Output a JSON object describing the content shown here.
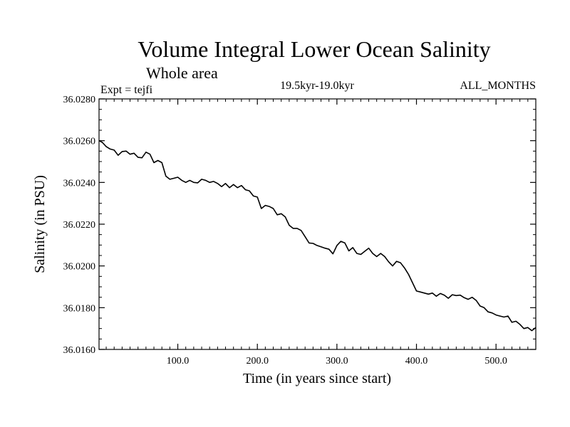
{
  "chart_data": {
    "type": "line",
    "title": "Volume Integral Lower Ocean Salinity",
    "subtitle": "Whole area",
    "experiment": "Expt = tejfi",
    "period": "19.5kyr-19.0kyr",
    "months": "ALL_MONTHS",
    "xlabel": "Time (in years since start)",
    "ylabel": "Salinity (in PSU)",
    "xlim": [
      1,
      550
    ],
    "ylim": [
      36.016,
      36.028
    ],
    "x_ticks": [
      100,
      200,
      300,
      400,
      500
    ],
    "x_tick_labels": [
      "100.0",
      "200.0",
      "300.0",
      "400.0",
      "500.0"
    ],
    "y_ticks": [
      36.016,
      36.018,
      36.02,
      36.022,
      36.024,
      36.026,
      36.028
    ],
    "y_tick_labels": [
      "36.0160",
      "36.0180",
      "36.0200",
      "36.0220",
      "36.0240",
      "36.0260",
      "36.0280"
    ],
    "grid": false,
    "series": [
      {
        "name": "salinity",
        "color": "#000000",
        "x": [
          1,
          5,
          10,
          15,
          20,
          25,
          30,
          35,
          40,
          45,
          50,
          55,
          60,
          65,
          70,
          75,
          80,
          85,
          90,
          95,
          100,
          105,
          110,
          115,
          120,
          125,
          130,
          135,
          140,
          145,
          150,
          155,
          160,
          165,
          170,
          175,
          180,
          185,
          190,
          195,
          200,
          205,
          210,
          215,
          220,
          225,
          230,
          235,
          240,
          245,
          250,
          255,
          260,
          265,
          270,
          275,
          280,
          285,
          290,
          295,
          300,
          305,
          310,
          315,
          320,
          325,
          330,
          335,
          340,
          345,
          350,
          355,
          360,
          365,
          370,
          375,
          380,
          385,
          390,
          395,
          400,
          405,
          410,
          415,
          420,
          425,
          430,
          435,
          440,
          445,
          450,
          455,
          460,
          465,
          470,
          475,
          480,
          485,
          490,
          495,
          500,
          505,
          510,
          515,
          520,
          525,
          530,
          535,
          540,
          545,
          550
        ],
        "values": [
          36.026,
          36.02592,
          36.02572,
          36.0256,
          36.02555,
          36.0253,
          36.02548,
          36.0255,
          36.02535,
          36.0254,
          36.0252,
          36.02518,
          36.02545,
          36.02535,
          36.02495,
          36.02505,
          36.02495,
          36.0243,
          36.02415,
          36.0242,
          36.02425,
          36.0241,
          36.024,
          36.0241,
          36.024,
          36.02398,
          36.02415,
          36.0241,
          36.024,
          36.02405,
          36.02395,
          36.0238,
          36.02395,
          36.02375,
          36.0239,
          36.02375,
          36.02385,
          36.02365,
          36.0236,
          36.02335,
          36.0233,
          36.02275,
          36.0229,
          36.02285,
          36.02275,
          36.02245,
          36.0225,
          36.02235,
          36.02195,
          36.0218,
          36.0218,
          36.0217,
          36.0214,
          36.0211,
          36.02108,
          36.02098,
          36.02092,
          36.02085,
          36.0208,
          36.02058,
          36.02098,
          36.02118,
          36.0211,
          36.02072,
          36.02088,
          36.0206,
          36.02055,
          36.0207,
          36.02085,
          36.0206,
          36.02045,
          36.0206,
          36.02045,
          36.0202,
          36.02,
          36.02022,
          36.02015,
          36.0199,
          36.0196,
          36.0192,
          36.0188,
          36.01875,
          36.0187,
          36.01865,
          36.0187,
          36.01855,
          36.01868,
          36.0186,
          36.01845,
          36.01862,
          36.01858,
          36.0186,
          36.01848,
          36.0184,
          36.0185,
          36.01835,
          36.01808,
          36.018,
          36.0178,
          36.01775,
          36.01765,
          36.0176,
          36.01755,
          36.0176,
          36.0173,
          36.01735,
          36.0172,
          36.017,
          36.01705,
          36.0169,
          36.01705
        ]
      }
    ]
  }
}
